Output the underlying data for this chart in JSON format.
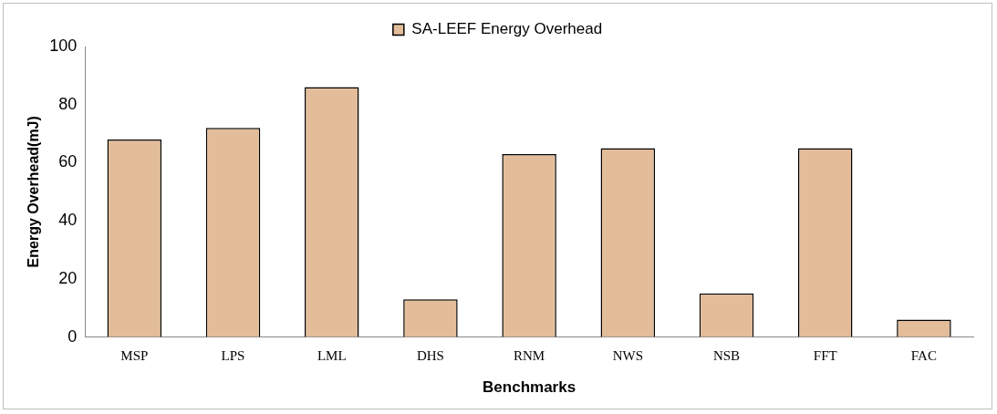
{
  "chart_data": {
    "type": "bar",
    "xlabel": "Benchmarks",
    "ylabel": "Energy Overhead(mJ)",
    "categories": [
      "MSP",
      "LPS",
      "LML",
      "DHS",
      "RNM",
      "NWS",
      "NSB",
      "FFT",
      "FAC"
    ],
    "series": [
      {
        "name": "SA-LEEF Energy Overhead",
        "color": "#e3bd9a",
        "values": [
          68,
          72,
          86,
          13,
          63,
          65,
          15,
          65,
          6
        ]
      }
    ],
    "ylim": [
      0,
      100
    ],
    "yticks": [
      0,
      20,
      40,
      60,
      80,
      100
    ],
    "grid": false,
    "legend": "top"
  }
}
